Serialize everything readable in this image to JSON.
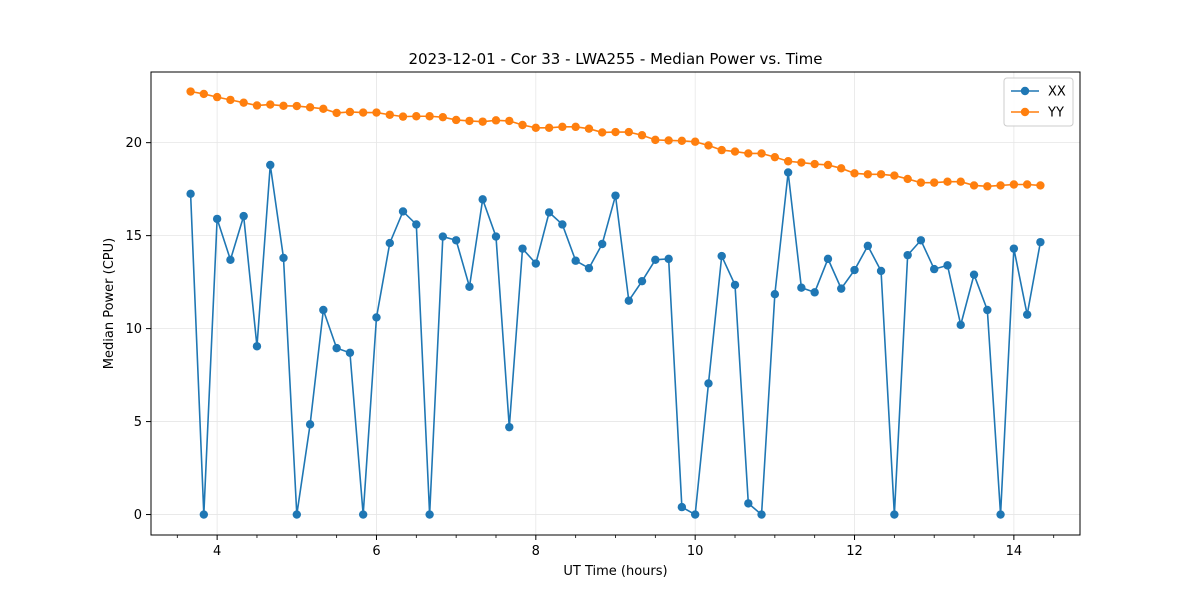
{
  "chart_data": {
    "type": "line",
    "title": "2023-12-01 - Cor 33 - LWA255 - Median Power vs. Time",
    "xlabel": "UT Time (hours)",
    "ylabel": "Median Power (CPU)",
    "xlim": [
      3.17,
      14.83
    ],
    "ylim": [
      -1.1,
      23.8
    ],
    "xticks": [
      4,
      6,
      8,
      10,
      12,
      14
    ],
    "xtick_labels": [
      "4",
      "6",
      "8",
      "10",
      "12",
      "14"
    ],
    "yticks": [
      0,
      5,
      10,
      15,
      20
    ],
    "ytick_labels": [
      "0",
      "5",
      "10",
      "15",
      "20"
    ],
    "grid": true,
    "legend_position": "top-right",
    "x": [
      3.667,
      3.833,
      4.0,
      4.167,
      4.333,
      4.5,
      4.667,
      4.833,
      5.0,
      5.167,
      5.333,
      5.5,
      5.667,
      5.833,
      6.0,
      6.167,
      6.333,
      6.5,
      6.667,
      6.833,
      7.0,
      7.167,
      7.333,
      7.5,
      7.667,
      7.833,
      8.0,
      8.167,
      8.333,
      8.5,
      8.667,
      8.833,
      9.0,
      9.167,
      9.333,
      9.5,
      9.667,
      9.833,
      10.0,
      10.167,
      10.333,
      10.5,
      10.667,
      10.833,
      11.0,
      11.167,
      11.333,
      11.5,
      11.667,
      11.833,
      12.0,
      12.167,
      12.333,
      12.5,
      12.667,
      12.833,
      13.0,
      13.167,
      13.333,
      13.5,
      13.667,
      13.833,
      14.0,
      14.167,
      14.333
    ],
    "series": [
      {
        "name": "XX",
        "color": "#1f77b4",
        "values": [
          17.25,
          0.0,
          15.9,
          13.7,
          16.05,
          9.05,
          18.8,
          13.8,
          0.0,
          4.85,
          11.0,
          8.95,
          8.7,
          0.0,
          10.6,
          14.6,
          16.3,
          15.6,
          0.0,
          14.95,
          14.75,
          12.25,
          16.95,
          14.95,
          4.7,
          14.3,
          13.5,
          16.25,
          15.6,
          13.65,
          13.25,
          14.55,
          17.15,
          11.5,
          12.55,
          13.7,
          13.75,
          0.4,
          0.0,
          7.05,
          13.9,
          12.35,
          0.6,
          0.0,
          11.85,
          18.4,
          12.2,
          11.95,
          13.75,
          12.15,
          13.15,
          14.45,
          13.1,
          0.0,
          13.95,
          14.75,
          13.2,
          13.4,
          10.2,
          12.9,
          11.0,
          0.0,
          14.3,
          10.75,
          14.65
        ]
      },
      {
        "name": "YY",
        "color": "#ff7f0e",
        "values": [
          22.75,
          22.62,
          22.45,
          22.3,
          22.15,
          22.0,
          22.05,
          21.98,
          21.97,
          21.9,
          21.82,
          21.6,
          21.65,
          21.62,
          21.62,
          21.5,
          21.4,
          21.42,
          21.42,
          21.37,
          21.22,
          21.17,
          21.13,
          21.2,
          21.17,
          20.95,
          20.8,
          20.8,
          20.85,
          20.85,
          20.75,
          20.55,
          20.57,
          20.57,
          20.4,
          20.15,
          20.12,
          20.1,
          20.05,
          19.85,
          19.6,
          19.52,
          19.42,
          19.42,
          19.22,
          19.0,
          18.93,
          18.85,
          18.8,
          18.62,
          18.35,
          18.3,
          18.3,
          18.23,
          18.05,
          17.85,
          17.85,
          17.9,
          17.9,
          17.7,
          17.65,
          17.7,
          17.75,
          17.75,
          17.7
        ]
      }
    ]
  }
}
